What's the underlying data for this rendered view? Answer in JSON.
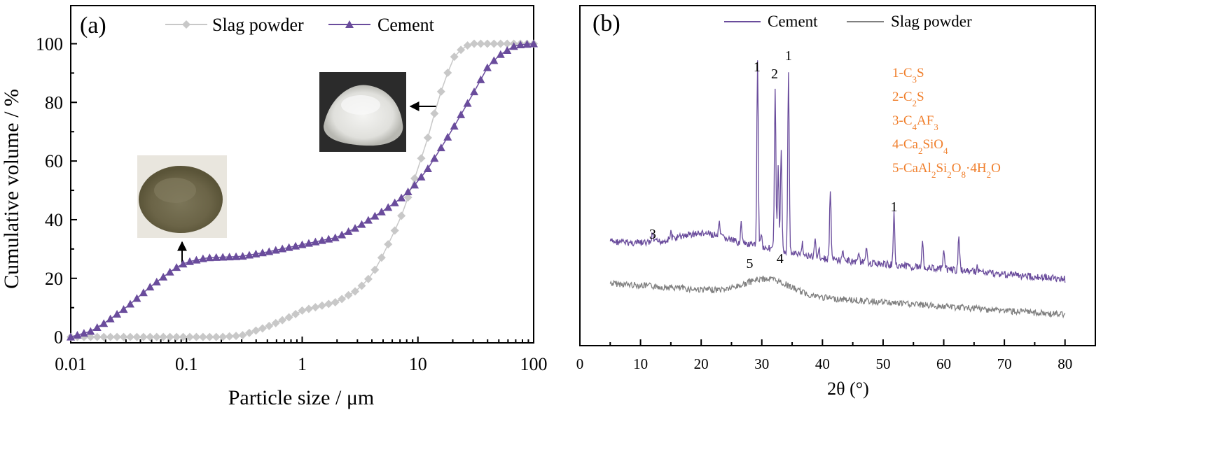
{
  "chart_data": [
    {
      "type": "line",
      "panel_label": "(a)",
      "xlabel": "Particle size / μm",
      "ylabel": "Cumulative volume / %",
      "xscale": "log",
      "xlim": [
        0.01,
        100
      ],
      "ylim": [
        -2,
        113
      ],
      "xticks": [
        0.01,
        0.1,
        1,
        10,
        100
      ],
      "xtick_labels": [
        "0.01",
        "0.1",
        "1",
        "10",
        "100"
      ],
      "yticks": [
        0,
        20,
        40,
        60,
        80,
        100
      ],
      "ytick_labels": [
        "0",
        "20",
        "40",
        "60",
        "80",
        "100"
      ],
      "legend": [
        "Slag powder",
        "Cement"
      ],
      "legend_position": "top",
      "series": [
        {
          "name": "Slag powder",
          "color": "#c8c8c8",
          "marker": "diamond",
          "knots": [
            [
              0.01,
              0
            ],
            [
              0.1,
              0
            ],
            [
              0.2,
              0
            ],
            [
              0.3,
              0.5
            ],
            [
              0.5,
              3.5
            ],
            [
              0.8,
              7
            ],
            [
              1,
              9
            ],
            [
              2,
              12
            ],
            [
              3,
              16
            ],
            [
              4,
              21
            ],
            [
              5,
              28
            ],
            [
              7,
              40
            ],
            [
              9,
              52
            ],
            [
              12,
              67
            ],
            [
              15,
              81
            ],
            [
              20,
              95
            ],
            [
              25,
              99
            ],
            [
              30,
              100
            ],
            [
              50,
              100
            ],
            [
              100,
              100
            ]
          ]
        },
        {
          "name": "Cement",
          "color": "#6a4c9c",
          "marker": "triangle",
          "knots": [
            [
              0.01,
              0
            ],
            [
              0.015,
              2
            ],
            [
              0.02,
              5
            ],
            [
              0.03,
              10
            ],
            [
              0.05,
              17.5
            ],
            [
              0.08,
              23.5
            ],
            [
              0.1,
              25.5
            ],
            [
              0.15,
              27
            ],
            [
              0.3,
              27.5
            ],
            [
              0.5,
              29
            ],
            [
              1,
              31.5
            ],
            [
              2,
              34
            ],
            [
              3,
              37.5
            ],
            [
              5,
              43
            ],
            [
              7,
              47
            ],
            [
              9,
              51
            ],
            [
              12,
              57
            ],
            [
              15,
              63
            ],
            [
              20,
              71
            ],
            [
              30,
              83
            ],
            [
              40,
              92
            ],
            [
              50,
              96
            ],
            [
              70,
              99.5
            ],
            [
              100,
              100
            ]
          ]
        }
      ],
      "insets": [
        {
          "name": "slag-powder-photo",
          "points_to_x": 0.1,
          "points_to_y": 26
        },
        {
          "name": "cement-photo",
          "points_to_x": 17,
          "points_to_y": 80
        }
      ]
    },
    {
      "type": "line",
      "panel_label": "(b)",
      "xlabel": "2θ (°)",
      "ylabel": "",
      "xlim": [
        0,
        85
      ],
      "xticks": [
        0,
        10,
        20,
        30,
        40,
        50,
        60,
        70,
        80
      ],
      "xtick_labels": [
        "0",
        "10",
        "20",
        "30",
        "40",
        "50",
        "60",
        "70",
        "80"
      ],
      "legend": [
        "Cement",
        "Slag powder"
      ],
      "legend_position": "top",
      "series": [
        {
          "name": "Cement",
          "color": "#6a4c9c",
          "two_theta_range": [
            5,
            80
          ]
        },
        {
          "name": "Slag powder",
          "color": "#808080",
          "two_theta_range": [
            5,
            80
          ]
        }
      ],
      "peak_labels": [
        {
          "text": "3",
          "two_theta": 12
        },
        {
          "text": "1",
          "two_theta": 29.2
        },
        {
          "text": "2",
          "two_theta": 32.1
        },
        {
          "text": "1",
          "two_theta": 34.4
        },
        {
          "text": "1",
          "two_theta": 51.8
        },
        {
          "text": "5",
          "two_theta": 28
        },
        {
          "text": "4",
          "two_theta": 33
        }
      ],
      "phase_legend": {
        "color": "#f07f2c",
        "items": [
          {
            "prefix": "1-C",
            "sub1": "3",
            "mid": "S",
            "sub2": "",
            "tail": ""
          },
          {
            "prefix": "2-C",
            "sub1": "2",
            "mid": "S",
            "sub2": "",
            "tail": ""
          },
          {
            "prefix": "3-C",
            "sub1": "4",
            "mid": "AF",
            "sub2": "3",
            "tail": ""
          },
          {
            "prefix": "4-Ca",
            "sub1": "2",
            "mid": "SiO",
            "sub2": "4",
            "tail": ""
          }
        ],
        "item5": {
          "p1": "5-CaAl",
          "s1": "2",
          "p2": "Si",
          "s2": "2",
          "p3": "O",
          "s3": "8",
          "p4": "·4H",
          "s4": "2",
          "p5": "O"
        }
      }
    }
  ]
}
